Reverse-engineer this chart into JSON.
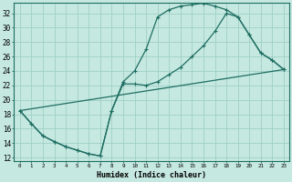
{
  "xlabel": "Humidex (Indice chaleur)",
  "bg_color": "#c5e8e0",
  "grid_color": "#9fcfc6",
  "line_color": "#1e6e62",
  "xlim": [
    -0.5,
    23.5
  ],
  "ylim": [
    11.5,
    33.5
  ],
  "xticks": [
    0,
    1,
    2,
    3,
    4,
    5,
    6,
    7,
    8,
    9,
    10,
    11,
    12,
    13,
    14,
    15,
    16,
    17,
    18,
    19,
    20,
    21,
    22,
    23
  ],
  "yticks": [
    12,
    14,
    16,
    18,
    20,
    22,
    24,
    26,
    28,
    30,
    32
  ],
  "line1_x": [
    0,
    1,
    2,
    3,
    4,
    5,
    6,
    7,
    8,
    9,
    10,
    11,
    12,
    13,
    14,
    15,
    16,
    17,
    18,
    19,
    20,
    21,
    22,
    23
  ],
  "line1_y": [
    18.5,
    16.7,
    15.0,
    14.2,
    13.5,
    13.0,
    12.5,
    12.2,
    18.5,
    22.5,
    24.0,
    27.0,
    31.5,
    32.5,
    33.0,
    33.2,
    33.4,
    33.0,
    32.5,
    31.5,
    29.0,
    26.5,
    25.5,
    24.2
  ],
  "line2_x": [
    0,
    1,
    2,
    3,
    4,
    5,
    6,
    7,
    8,
    9,
    10,
    11,
    12,
    13,
    14,
    15,
    16,
    17,
    18,
    19,
    20,
    21,
    22,
    23
  ],
  "line2_y": [
    18.5,
    16.7,
    15.0,
    14.2,
    13.5,
    13.0,
    12.5,
    12.2,
    18.5,
    22.2,
    22.2,
    22.0,
    22.5,
    23.5,
    24.5,
    26.0,
    27.5,
    29.5,
    32.0,
    31.5,
    29.0,
    26.5,
    25.5,
    24.2
  ],
  "line3_x": [
    0,
    23
  ],
  "line3_y": [
    18.5,
    24.2
  ]
}
